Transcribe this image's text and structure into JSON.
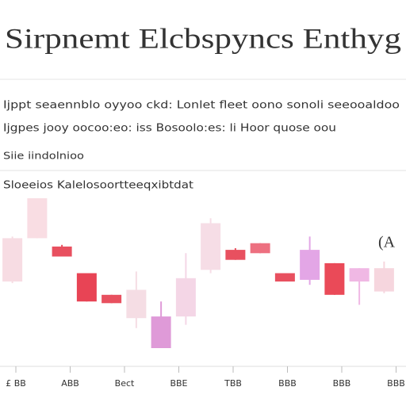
{
  "chart_data": {
    "type": "candlestick",
    "title": "Sirpnemt Elcbspyncs Enthyg",
    "subtitle_lines": [
      "Ijppt seaennblo oyyoo ckd: Lonlet fleet oono sonoli seeooaldoo",
      "Ijgpes jooy oocoo:eo: iss Bosoolo:es: li Hoor quose oou",
      "Siie iindolnioo"
    ],
    "panel_title": "Sloeeios Kalelosoortteeqxibtdat",
    "annotation": "(A",
    "x_labels": [
      "£ BB",
      "ABB",
      "Bect",
      "BBE",
      "TBB",
      "BBB",
      "BBB",
      "BBB"
    ],
    "open": [
      50,
      76,
      65,
      38,
      37,
      28,
      10,
      29,
      57,
      63,
      67,
      50,
      51,
      42,
      50,
      44
    ],
    "close": [
      76,
      100,
      71,
      55,
      42,
      45,
      29,
      52,
      85,
      69,
      73,
      55,
      69,
      61,
      58,
      58
    ],
    "high": [
      77,
      100,
      72,
      55,
      42,
      56,
      38,
      67,
      88,
      70,
      73,
      55,
      77,
      61,
      58,
      62
    ],
    "low": [
      49,
      76,
      65,
      38,
      37,
      22,
      10,
      24,
      55,
      63,
      67,
      50,
      48,
      42,
      36,
      43
    ],
    "colors": [
      "#f7dce3",
      "#f9dde3",
      "#e8505f",
      "#e84455",
      "#e8505f",
      "#f5dde4",
      "#df9ad8",
      "#f4d6e6",
      "#f6dde6",
      "#e8505f",
      "#ed7080",
      "#e8505f",
      "#e3a6e6",
      "#ea4a58",
      "#f0b8e4",
      "#f6d6de"
    ],
    "ylim": [
      0,
      100
    ]
  }
}
